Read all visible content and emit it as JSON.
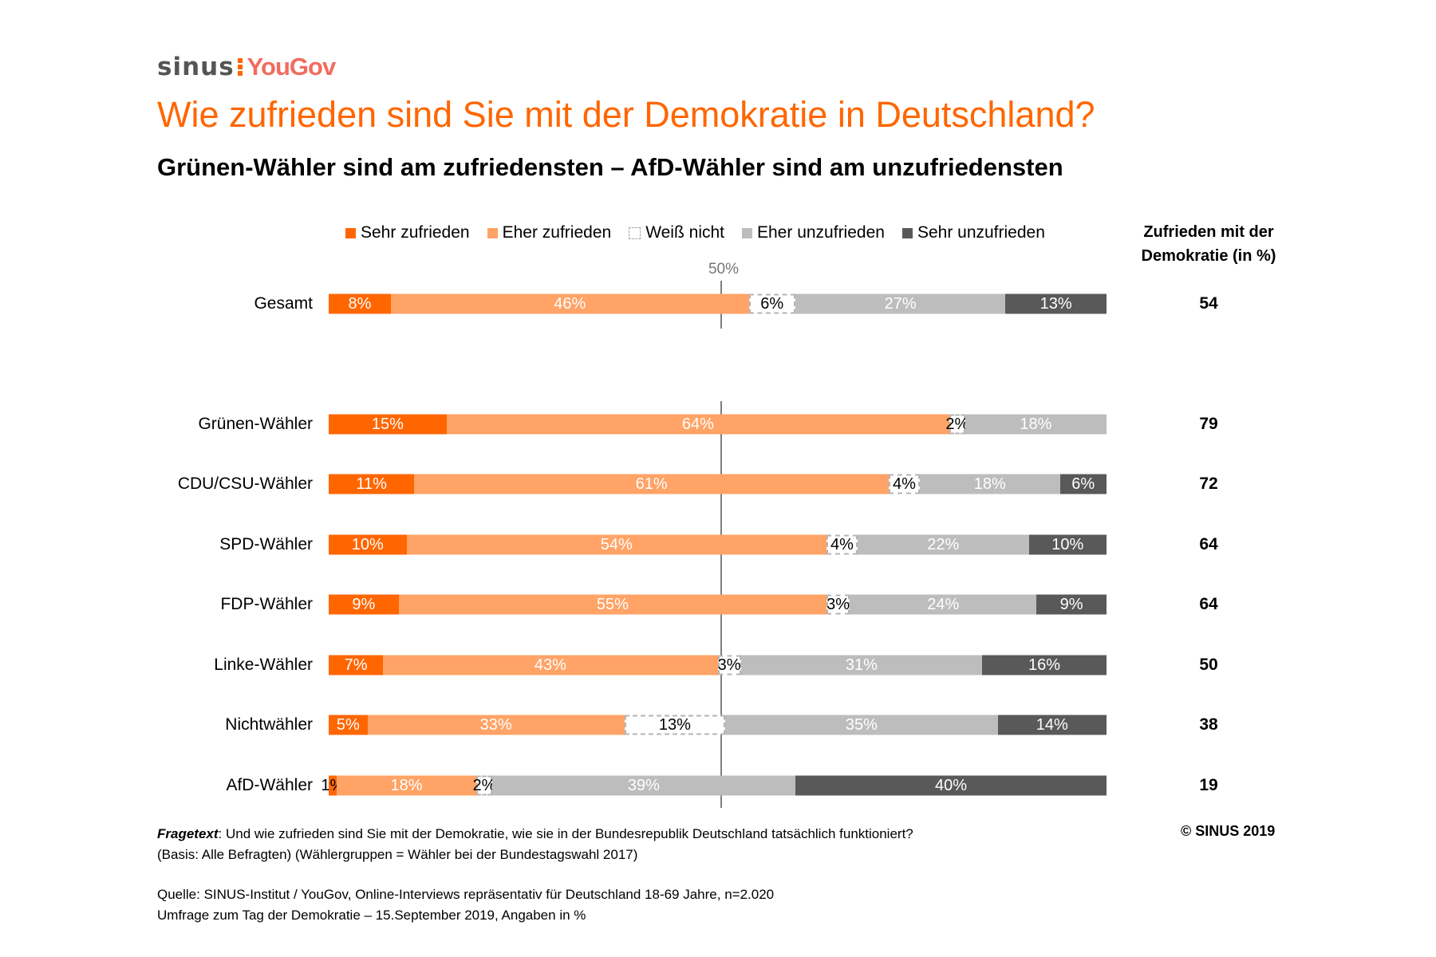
{
  "logo": {
    "left": "sinus",
    "right": "YouGov"
  },
  "title": "Wie zufrieden sind Sie mit der Demokratie in Deutschland?",
  "subtitle": "Grünen-Wähler sind am zufriedensten – AfD-Wähler sind am unzufriedensten",
  "right_header": {
    "line1": "Zufrieden mit der",
    "line2": "Demokratie (in %)"
  },
  "chart_data": {
    "type": "bar",
    "orientation": "horizontal-stacked-100",
    "reference_line": {
      "value": 50,
      "label": "50%"
    },
    "series": [
      {
        "name": "Sehr zufrieden",
        "color": "#FF6600",
        "label_color": "#FFFFFF"
      },
      {
        "name": "Eher zufrieden",
        "color": "#FFA366",
        "label_color": "#FFFFFF"
      },
      {
        "name": "Weiß nicht",
        "color": "#FFFFFF",
        "label_color": "#000000"
      },
      {
        "name": "Eher unzufrieden",
        "color": "#BDBDBD",
        "label_color": "#FFFFFF"
      },
      {
        "name": "Sehr unzufrieden",
        "color": "#595959",
        "label_color": "#FFFFFF"
      }
    ],
    "categories": [
      "Gesamt",
      "Grünen-Wähler",
      "CDU/CSU-Wähler",
      "SPD-Wähler",
      "FDP-Wähler",
      "Linke-Wähler",
      "Nichtwähler",
      "AfD-Wähler"
    ],
    "values": [
      [
        8,
        46,
        6,
        27,
        13
      ],
      [
        15,
        64,
        2,
        18,
        null
      ],
      [
        11,
        61,
        4,
        18,
        6
      ],
      [
        10,
        54,
        4,
        22,
        10
      ],
      [
        9,
        55,
        3,
        24,
        9
      ],
      [
        7,
        43,
        3,
        31,
        16
      ],
      [
        5,
        33,
        13,
        35,
        14
      ],
      [
        1,
        18,
        2,
        39,
        40
      ]
    ],
    "labels": [
      [
        "8%",
        "46%",
        "6%",
        "27%",
        "13%"
      ],
      [
        "15%",
        "64%",
        "2%",
        "18%",
        ""
      ],
      [
        "11%",
        "61%",
        "4%",
        "18%",
        "6%"
      ],
      [
        "10%",
        "54%",
        "4%",
        "22%",
        "10%"
      ],
      [
        "9%",
        "55%",
        "3%",
        "24%",
        "9%"
      ],
      [
        "7%",
        "43%",
        "3%",
        "31%",
        "16%"
      ],
      [
        "5%",
        "33%",
        "13%",
        "35%",
        "14%"
      ],
      [
        "1%",
        "18%",
        "2%",
        "39%",
        "40%"
      ]
    ],
    "satisfied_total": [
      "54",
      "79",
      "72",
      "64",
      "64",
      "50",
      "38",
      "19"
    ]
  },
  "footer": {
    "fragetext_label": "Fragetext",
    "fragetext": ": Und wie zufrieden sind Sie mit der Demokratie, wie sie in der Bundesrepublik Deutschland tatsächlich funktioniert?",
    "basis": "(Basis: Alle Befragten) (Wählergruppen = Wähler bei der Bundestagswahl 2017)",
    "quelle": "Quelle: SINUS-Institut / YouGov, Online-Interviews repräsentativ für Deutschland 18-69 Jahre, n=2.020",
    "umfrage": "Umfrage zum Tag der Demokratie – 15.September 2019, Angaben in %",
    "copyright": "© SINUS 2019"
  }
}
